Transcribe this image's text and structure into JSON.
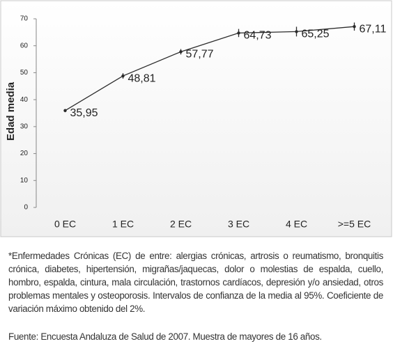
{
  "chart_data": {
    "type": "line",
    "y_label": "Edad media",
    "categories": [
      "0 EC",
      "1 EC",
      "2 EC",
      "3 EC",
      "4 EC",
      ">=5 EC"
    ],
    "values": [
      35.95,
      48.81,
      57.77,
      64.73,
      65.25,
      67.11
    ],
    "value_labels": [
      "35,95",
      "48,81",
      "57,77",
      "64,73",
      "65,25",
      "67,11"
    ],
    "errors": [
      0.6,
      1,
      1,
      1.5,
      1.8,
      1.5
    ],
    "color": "#2b2b2b",
    "ylim": [
      0,
      70
    ],
    "yticks": [
      0,
      10,
      20,
      30,
      40,
      50,
      60,
      70
    ],
    "grid": false
  },
  "notes": {
    "footnote": "*Enfermedades Crónicas (EC) de entre: alergias crónicas, artrosis o reumatismo, bronquitis crónica, diabetes, hipertensión, migrañas/jaquecas, dolor o molestias de espalda, cuello, hombro, espalda, cintura, mala circulación, trastornos cardíacos, depresión y/o ansiedad, otros problemas mentales y osteoporosis. Intervalos de confianza de la media al 95%. Coeficiente de variación máximo obtenido del 2%.",
    "source": "Fuente: Encuesta Andaluza de Salud de 2007. Muestra de mayores de 16 años."
  }
}
